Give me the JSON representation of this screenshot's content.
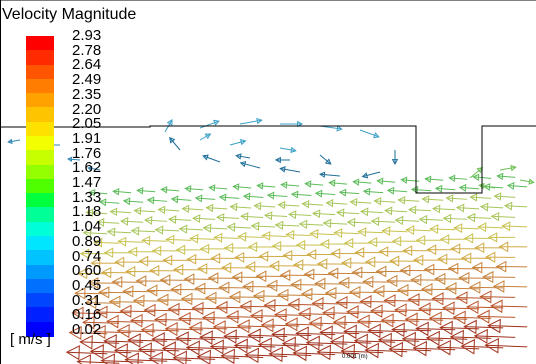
{
  "legend": {
    "title": "Velocity Magnitude",
    "units": "[ m/s ]",
    "ticks": [
      "2.93",
      "2.78",
      "2.64",
      "2.49",
      "2.35",
      "2.20",
      "2.05",
      "1.91",
      "1.76",
      "1.62",
      "1.47",
      "1.33",
      "1.18",
      "1.04",
      "0.89",
      "0.74",
      "0.60",
      "0.45",
      "0.31",
      "0.16",
      "0.02"
    ],
    "colors": [
      "#ff0000",
      "#ff2a00",
      "#ff5500",
      "#ff7d00",
      "#ffa200",
      "#ffc400",
      "#ffe100",
      "#f3ff00",
      "#c8ff00",
      "#94ff00",
      "#4fff00",
      "#00ff3c",
      "#00ff96",
      "#00ffd8",
      "#00e6ff",
      "#00c3ff",
      "#009aff",
      "#0070ff",
      "#0046ff",
      "#0020ff",
      "#0000ff"
    ]
  },
  "scene": {
    "background": "#ffffff",
    "wall_color": "#000000",
    "scale_label": "0.001 (m)"
  }
}
